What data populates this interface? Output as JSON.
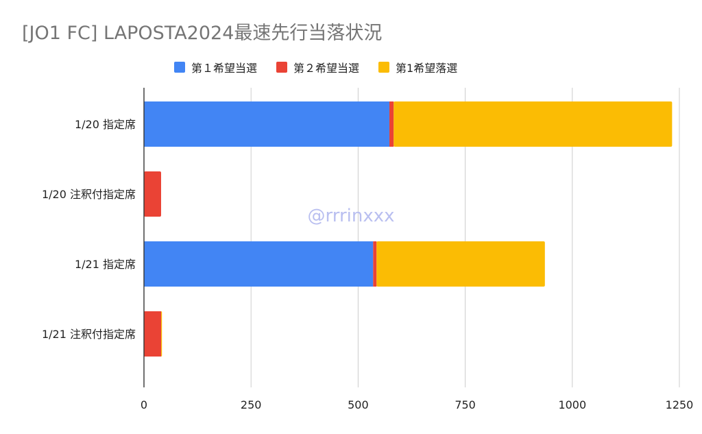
{
  "chart_data": {
    "type": "bar",
    "orientation": "horizontal",
    "stacked": true,
    "title": "[JO1 FC] LAPOSTA2024最速先行当落状況",
    "watermark": "@rrrinxxx",
    "categories": [
      "1/20 指定席",
      "1/20 注釈付指定席",
      "1/21 指定席",
      "1/21 注釈付指定席"
    ],
    "series": [
      {
        "name": "第１希望当選",
        "color": "#4285F4",
        "values": [
          573,
          0,
          535,
          0
        ]
      },
      {
        "name": "第２希望当選",
        "color": "#EA4335",
        "values": [
          10,
          40,
          8,
          40
        ]
      },
      {
        "name": "第1希望落選",
        "color": "#FBBC04",
        "values": [
          650,
          0,
          393,
          2
        ]
      }
    ],
    "xlim": [
      0,
      1250
    ],
    "xticks": [
      0,
      250,
      500,
      750,
      1000,
      1250
    ],
    "xlabel": "",
    "ylabel": "",
    "grid": true,
    "legend_position": "top"
  }
}
